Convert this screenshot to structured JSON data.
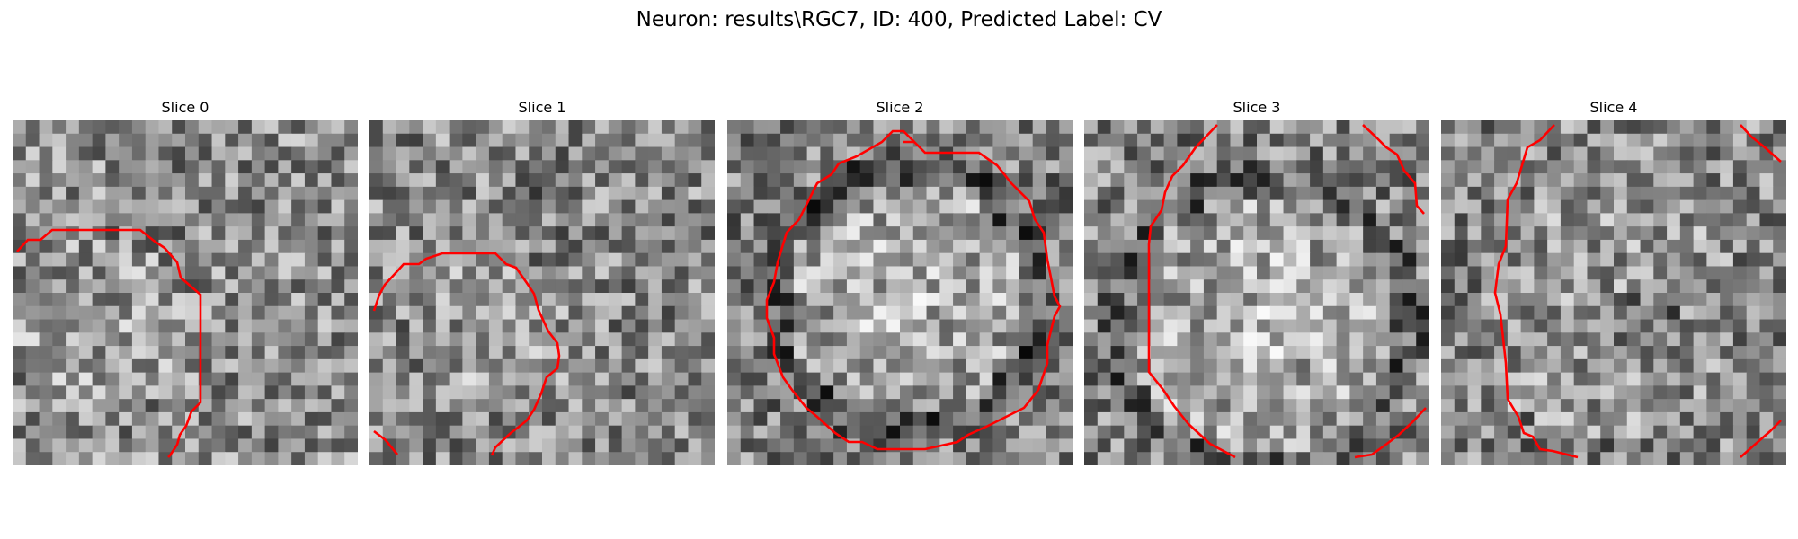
{
  "figure": {
    "title": "Neuron: results\\RGC7, ID: 400, Predicted Label: CV"
  },
  "palette": {
    "contour_color": "#ff0000",
    "background": "#ffffff",
    "image_colormap": "grayscale"
  },
  "slices": [
    {
      "title": "Slice 0"
    },
    {
      "title": "Slice 1"
    },
    {
      "title": "Slice 2"
    },
    {
      "title": "Slice 3"
    },
    {
      "title": "Slice 4"
    }
  ]
}
